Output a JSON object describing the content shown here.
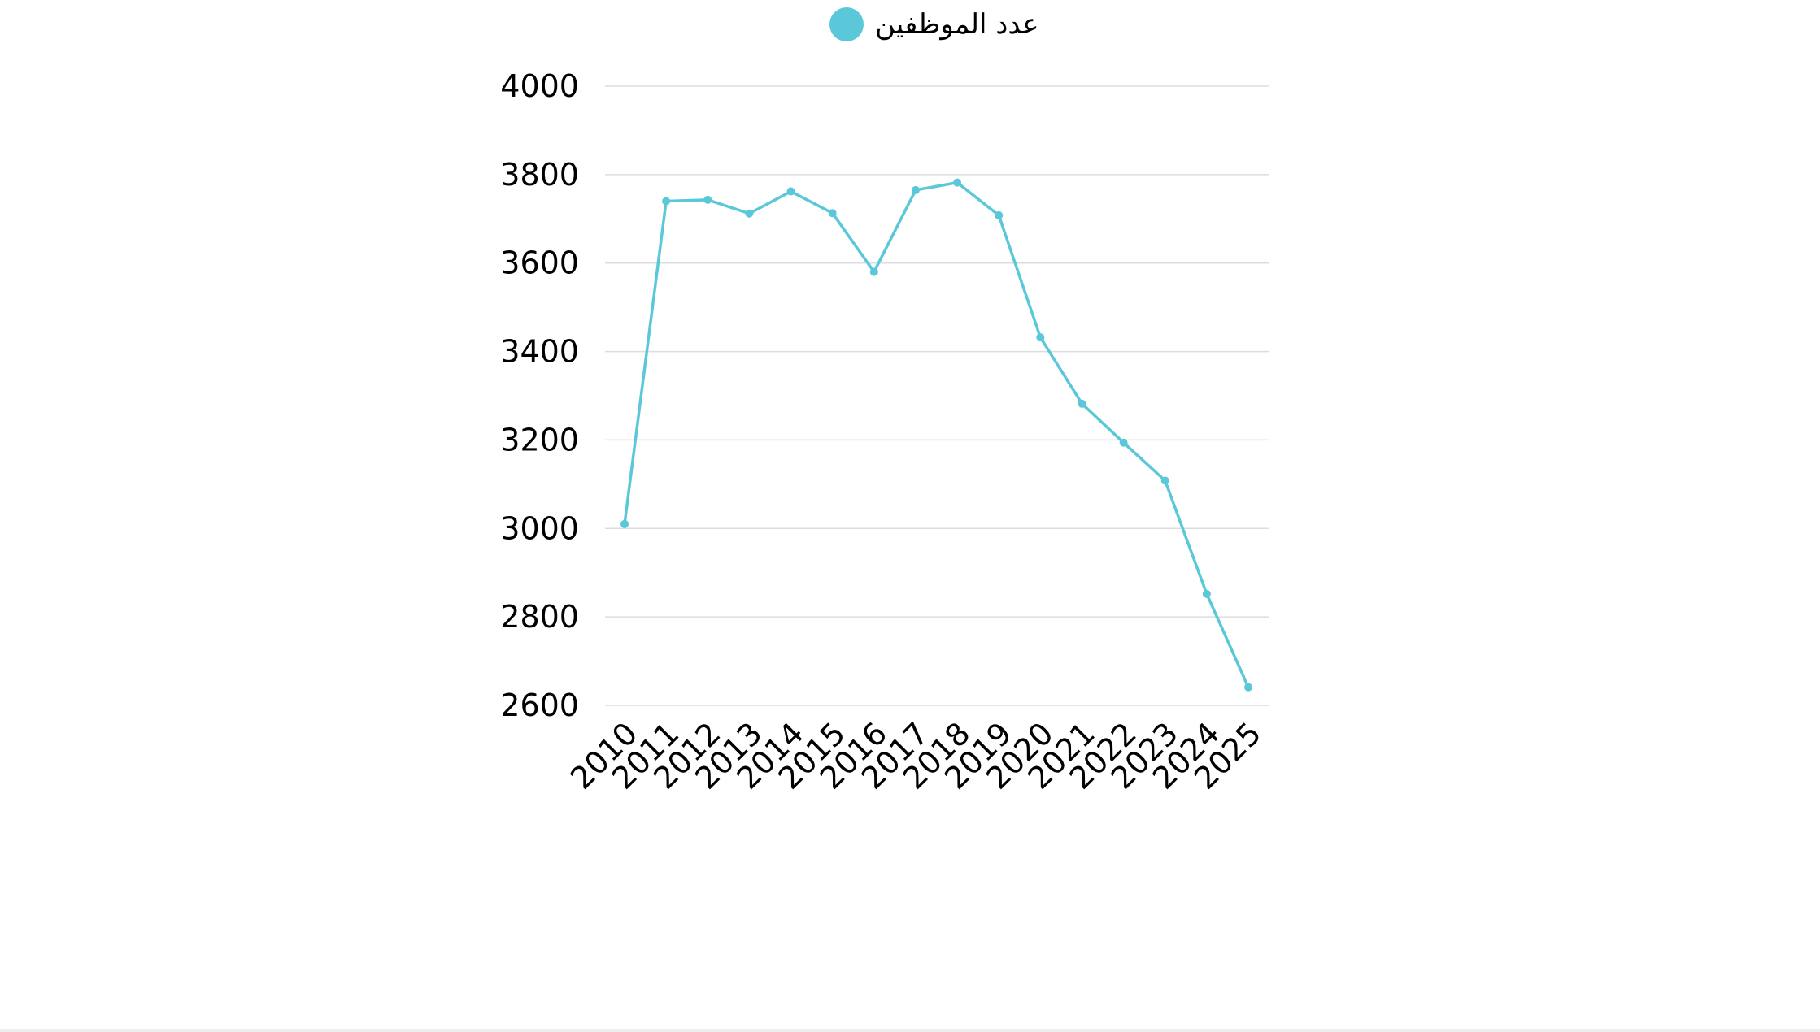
{
  "colors": {
    "series": "#5bc8d9",
    "grid": "#dddddd",
    "text": "#000000"
  },
  "legend": {
    "series_label": "عدد الموظفين"
  },
  "chart_data": {
    "type": "line",
    "title": "",
    "xlabel": "",
    "ylabel": "",
    "x": [
      "2010",
      "2011",
      "2012",
      "2013",
      "2014",
      "2015",
      "2016",
      "2017",
      "2018",
      "2019",
      "2020",
      "2021",
      "2022",
      "2023",
      "2024",
      "2025"
    ],
    "series": [
      {
        "name": "عدد الموظفين",
        "values": [
          3010,
          3740,
          3743,
          3712,
          3762,
          3713,
          3580,
          3765,
          3782,
          3708,
          3432,
          3282,
          3194,
          3108,
          2852,
          2641
        ]
      }
    ],
    "ylim": [
      2600,
      4000
    ],
    "yticks": [
      2600,
      2800,
      3000,
      3200,
      3400,
      3600,
      3800,
      4000
    ],
    "grid": true,
    "legend_position": "top-center"
  }
}
